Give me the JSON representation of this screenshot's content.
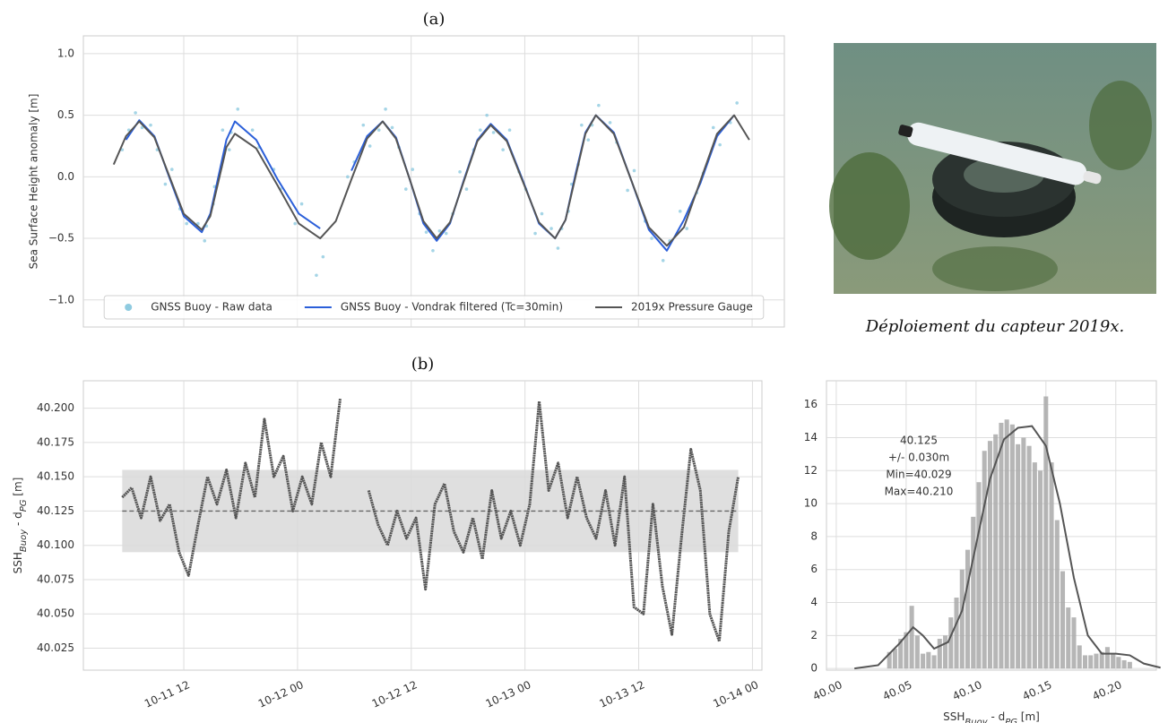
{
  "chart_data": [
    {
      "type": "line",
      "title": "(a)",
      "ylabel": "Sea Surface Height anomaly [m]",
      "xlim": [
        1.4,
        75.4
      ],
      "xticks": [
        12,
        24,
        36,
        48,
        60,
        72
      ],
      "xtick_labels": false,
      "ylim": [
        -1.22,
        1.145
      ],
      "yticks": [
        {
          "value": 1.0,
          "label": "1.0"
        },
        0.5,
        {
          "value": 0,
          "label": "0.0"
        },
        {
          "value": -0.5,
          "label": "−0.5"
        },
        {
          "value": -1.0,
          "label": "−1.0"
        }
      ],
      "grid": true,
      "legend": "lower center",
      "series": [
        {
          "name": "GNSS Buoy - Raw data",
          "kind": "scatter",
          "color": "#8fcbe0",
          "x": [
            6.2,
            7.6,
            9.2,
            10.75,
            12.3,
            14.2,
            15.1,
            15.95,
            16.8,
            17.7,
            19.95,
            22.2,
            24.45,
            26.7,
            30.0,
            31.65,
            33.3,
            34.7,
            36.15,
            37.6,
            39.0,
            40.4,
            41.85,
            43.3,
            44.7,
            46.4,
            48.1,
            49.8,
            51.5,
            52.6,
            53.65,
            54.7,
            55.8,
            57.7,
            59.55,
            61.4,
            63.3,
            65.1,
            66.85,
            68.6,
            70.4,
            5.5,
            6.9,
            8.5,
            10.05,
            11.6,
            13.5,
            14.4,
            15.25,
            16.1,
            17.0,
            19.25,
            21.5,
            23.75,
            26.0,
            29.3,
            30.95,
            32.6,
            34.0,
            35.45,
            36.9,
            38.3,
            39.7,
            41.15,
            42.6,
            44.0,
            45.7,
            47.4,
            49.1,
            50.8,
            51.9,
            52.95,
            54.0,
            55.1,
            57.0,
            58.85,
            60.7,
            62.6,
            64.4,
            66.15,
            67.9,
            69.7
          ],
          "values": [
            0.38,
            0.4,
            0.22,
            0.06,
            -0.38,
            -0.52,
            -0.22,
            0.08,
            0.22,
            0.55,
            0.24,
            -0.1,
            -0.22,
            -0.65,
            0.12,
            0.25,
            0.55,
            0.24,
            0.06,
            -0.45,
            -0.44,
            -0.3,
            -0.1,
            0.38,
            0.36,
            0.38,
            -0.1,
            -0.3,
            -0.58,
            -0.28,
            0.1,
            0.3,
            0.58,
            0.28,
            0.05,
            -0.5,
            -0.52,
            -0.42,
            0.03,
            0.26,
            0.6,
            0.22,
            0.52,
            0.42,
            -0.06,
            -0.26,
            -0.38,
            -0.4,
            -0.08,
            0.38,
            0.36,
            0.38,
            0.06,
            -0.38,
            -0.8,
            0.0,
            0.42,
            0.38,
            0.4,
            -0.1,
            -0.3,
            -0.6,
            -0.46,
            0.04,
            0.22,
            0.5,
            0.22,
            0.04,
            -0.46,
            -0.42,
            -0.42,
            -0.06,
            0.42,
            0.42,
            0.44,
            -0.11,
            -0.36,
            -0.68,
            -0.28,
            -0.13,
            0.4,
            0.44
          ]
        },
        {
          "name": "GNSS Buoy - Vondrak filtered (Tc=30min)",
          "kind": "line",
          "color": "#2b5fd9",
          "x": [
            5.9,
            7.3,
            8.9,
            10.45,
            12.0,
            13.9,
            14.8,
            15.65,
            16.5,
            17.4,
            19.65,
            21.9,
            24.15,
            26.4,
            28.05,
            29.7,
            31.35,
            33.0,
            34.4,
            35.85,
            37.3,
            38.7,
            40.1,
            41.55,
            43.0,
            44.4,
            46.1,
            47.8,
            49.5,
            51.2,
            52.3,
            53.35,
            54.4,
            55.5,
            57.4,
            59.25,
            61.1,
            63.0,
            64.8,
            66.55,
            68.3,
            70.1
          ],
          "values": [
            0.3,
            0.46,
            0.33,
            0.0,
            -0.32,
            -0.45,
            -0.3,
            0.0,
            0.3,
            0.45,
            0.3,
            -0.02,
            -0.3,
            -0.42,
            null,
            0.05,
            0.33,
            0.45,
            0.32,
            -0.02,
            -0.38,
            -0.52,
            -0.38,
            -0.03,
            0.3,
            0.43,
            0.3,
            -0.03,
            -0.38,
            -0.5,
            -0.35,
            0.02,
            0.36,
            0.5,
            0.36,
            -0.03,
            -0.43,
            -0.6,
            -0.35,
            -0.05,
            0.33,
            0.5
          ]
        },
        {
          "name": "2019x Pressure Gauge",
          "kind": "line",
          "color": "#555555",
          "x": [
            4.6,
            5.9,
            7.3,
            8.9,
            10.45,
            12.0,
            13.9,
            14.8,
            15.65,
            16.5,
            17.4,
            19.65,
            21.9,
            24.15,
            26.4,
            28.05,
            29.7,
            31.35,
            33.0,
            34.4,
            35.85,
            37.3,
            38.7,
            40.1,
            41.55,
            43.0,
            44.4,
            46.1,
            47.8,
            49.5,
            51.2,
            52.3,
            53.35,
            54.4,
            55.5,
            57.4,
            59.25,
            61.1,
            63.0,
            64.8,
            66.55,
            68.3,
            70.1,
            71.7
          ],
          "values": [
            0.1,
            0.33,
            0.45,
            0.32,
            0.01,
            -0.3,
            -0.43,
            -0.32,
            -0.04,
            0.24,
            0.35,
            0.23,
            -0.07,
            -0.38,
            -0.5,
            -0.36,
            -0.02,
            0.31,
            0.45,
            0.31,
            -0.02,
            -0.36,
            -0.5,
            -0.37,
            -0.04,
            0.29,
            0.42,
            0.29,
            -0.04,
            -0.37,
            -0.5,
            -0.35,
            0.0,
            0.35,
            0.5,
            0.35,
            -0.03,
            -0.41,
            -0.56,
            -0.41,
            -0.03,
            0.35,
            0.5,
            0.3
          ]
        }
      ]
    },
    {
      "type": "line",
      "title": "(b)",
      "ylabel": [
        {
          "text": "SSH"
        },
        {
          "text": "Buoy",
          "sub": true
        },
        {
          "text": " - d"
        },
        {
          "text": "PG",
          "sub": true
        },
        {
          "text": " [m]"
        }
      ],
      "xlim": [
        1.4,
        73.0
      ],
      "xticks": [
        {
          "value": 12,
          "label": "10-11 12"
        },
        {
          "value": 24,
          "label": "10-12 00"
        },
        {
          "value": 36,
          "label": "10-12 12"
        },
        {
          "value": 48,
          "label": "10-13 00"
        },
        {
          "value": 60,
          "label": "10-13 12"
        },
        {
          "value": 72,
          "label": "10-14 00"
        }
      ],
      "ylim": [
        40.009,
        40.22
      ],
      "yticks": [
        40.025,
        {
          "value": 40.05,
          "label": "40.050"
        },
        40.075,
        {
          "value": 40.1,
          "label": "40.100"
        },
        40.125,
        {
          "value": 40.15,
          "label": "40.150"
        },
        40.175,
        {
          "value": 40.2,
          "label": "40.200"
        }
      ],
      "grid": true,
      "color": "#555555",
      "mean": 40.125,
      "band": [
        40.095,
        40.155
      ],
      "x": [
        5.5,
        6.5,
        7.5,
        8.5,
        9.5,
        10.5,
        11.5,
        12.5,
        13.5,
        14.5,
        15.5,
        16.5,
        17.5,
        18.5,
        19.5,
        20.5,
        21.5,
        22.5,
        23.5,
        24.5,
        25.5,
        26.5,
        27.5,
        28.5,
        29.5,
        30.5,
        31.5,
        32.5,
        33.5,
        34.5,
        35.5,
        36.5,
        37.5,
        38.5,
        39.5,
        40.5,
        41.5,
        42.5,
        43.5,
        44.5,
        45.5,
        46.5,
        47.5,
        48.5,
        49.5,
        50.5,
        51.5,
        52.5,
        53.5,
        54.5,
        55.5,
        56.5,
        57.5,
        58.5,
        59.5,
        60.5,
        61.5,
        62.5,
        63.5,
        64.5,
        65.5,
        66.5,
        67.5,
        68.5,
        69.5,
        70.5
      ],
      "values": [
        40.135,
        40.142,
        40.12,
        40.15,
        40.118,
        40.13,
        40.095,
        40.078,
        40.115,
        40.15,
        40.13,
        40.155,
        40.12,
        40.16,
        40.135,
        40.192,
        40.15,
        40.165,
        40.125,
        40.15,
        40.13,
        40.175,
        40.15,
        40.207,
        null,
        null,
        40.14,
        40.115,
        40.1,
        40.125,
        40.105,
        40.12,
        40.068,
        40.13,
        40.145,
        40.11,
        40.095,
        40.12,
        40.09,
        40.14,
        40.105,
        40.125,
        40.1,
        40.13,
        40.205,
        40.14,
        40.16,
        40.12,
        40.15,
        40.12,
        40.105,
        40.14,
        40.1,
        40.15,
        40.055,
        40.05,
        40.13,
        40.07,
        40.035,
        40.105,
        40.17,
        40.14,
        40.05,
        40.03,
        40.11,
        40.15
      ]
    },
    {
      "type": "histogram",
      "xlabel": [
        {
          "text": "SSH"
        },
        {
          "text": "Buoy",
          "sub": true
        },
        {
          "text": " - d"
        },
        {
          "text": "PG",
          "sub": true
        },
        {
          "text": " [m]"
        }
      ],
      "xlim": [
        39.993,
        40.229
      ],
      "xticks": [
        {
          "value": 40.0,
          "label": "40.00"
        },
        40.05,
        {
          "value": 40.1,
          "label": "40.10"
        },
        40.15,
        {
          "value": 40.2,
          "label": "40.20"
        }
      ],
      "ylim": [
        -0.1,
        17.45
      ],
      "yticks": [
        0,
        2,
        4,
        6,
        8,
        10,
        12,
        14,
        16
      ],
      "grid": true,
      "color": "#a9a9a9",
      "line_color": "#555555",
      "bins": [
        40.036,
        40.04,
        40.044,
        40.048,
        40.052,
        40.056,
        40.06,
        40.064,
        40.068,
        40.072,
        40.076,
        40.08,
        40.084,
        40.088,
        40.092,
        40.096,
        40.1,
        40.104,
        40.108,
        40.112,
        40.116,
        40.12,
        40.124,
        40.128,
        40.132,
        40.136,
        40.14,
        40.144,
        40.148,
        40.152,
        40.156,
        40.16,
        40.164,
        40.168,
        40.172,
        40.176,
        40.18,
        40.184,
        40.188,
        40.192,
        40.196,
        40.2,
        40.204,
        40.208,
        40.212
      ],
      "counts": [
        1.0,
        1.2,
        1.8,
        2.2,
        3.8,
        2.0,
        0.9,
        1.0,
        0.8,
        1.8,
        2.0,
        3.1,
        4.3,
        6.0,
        7.2,
        9.2,
        11.3,
        13.2,
        13.8,
        14.2,
        14.9,
        15.1,
        14.8,
        13.6,
        14.0,
        13.5,
        12.5,
        12.0,
        16.5,
        12.5,
        9.0,
        5.9,
        3.7,
        3.1,
        1.4,
        0.8,
        0.8,
        0.9,
        1.0,
        1.3,
        0.9,
        0.7,
        0.5,
        0.4
      ],
      "kde": {
        "x": [
          40.013,
          40.03,
          40.045,
          40.055,
          40.062,
          40.07,
          40.08,
          40.09,
          40.1,
          40.11,
          40.12,
          40.13,
          40.14,
          40.15,
          40.16,
          40.17,
          40.18,
          40.19,
          40.2,
          40.21,
          40.22,
          40.232
        ],
        "values": [
          0,
          0.2,
          1.5,
          2.5,
          2.0,
          1.2,
          1.6,
          3.5,
          7.5,
          11.5,
          13.9,
          14.6,
          14.7,
          13.5,
          10.0,
          5.5,
          2.0,
          0.9,
          0.9,
          0.8,
          0.3,
          0.05
        ]
      },
      "annotation": [
        "40.125",
        "+/- 0.030m",
        "Min=40.029",
        "Max=40.210"
      ]
    }
  ],
  "photo": {
    "caption": "Déploiement du capteur 2019x."
  }
}
